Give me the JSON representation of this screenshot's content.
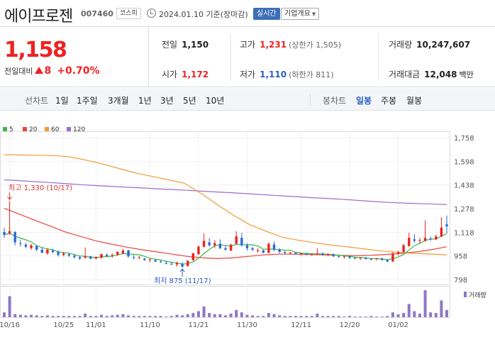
{
  "header": {
    "stock_name": "에이프로젠",
    "stock_code": "007460",
    "market": "코스피",
    "datetime": "2024.01.10 기준(장마감)",
    "realtime_label": "실시간",
    "company_button": "기업개요"
  },
  "quote": {
    "price": "1,158",
    "change_label": "전일대비",
    "change": "8",
    "change_pct": "+0.70%",
    "prev_close_label": "전일",
    "prev_close": "1,150",
    "open_label": "시가",
    "open": "1,172",
    "high_label": "고가",
    "high": "1,231",
    "upper_limit": "(상한가 1,505)",
    "low_label": "저가",
    "low": "1,110",
    "lower_limit": "(하한가 811)",
    "volume_label": "거래량",
    "volume": "10,247,607",
    "amount_label": "거래대금",
    "amount": "12,048",
    "amount_unit": "백만"
  },
  "period_tabs": {
    "line_title": "선차트",
    "line_items": [
      "1일",
      "1주일",
      "3개월",
      "1년",
      "3년",
      "5년",
      "10년"
    ],
    "candle_title": "봉차트",
    "candle_items": [
      "일봉",
      "주봉",
      "월봉"
    ],
    "active_candle": "일봉"
  },
  "chart_data": {
    "type": "candlestick",
    "y_ticks": [
      "1,758",
      "1,598",
      "1,438",
      "1,278",
      "1,118",
      "958",
      "798"
    ],
    "ylim": [
      798,
      1758
    ],
    "x_ticks": [
      "10/16",
      "10/25",
      "11/01",
      "11/10",
      "11/21",
      "11/30",
      "12/11",
      "12/20",
      "01/02"
    ],
    "moving_averages": [
      {
        "name": "5",
        "color": "#3cb84a"
      },
      {
        "name": "20",
        "color": "#e8453c"
      },
      {
        "name": "60",
        "color": "#f39a32"
      },
      {
        "name": "120",
        "color": "#9a6cd1"
      }
    ],
    "ma60": [
      1643,
      1641,
      1639,
      1637,
      1628,
      1606,
      1580,
      1549,
      1520,
      1496,
      1474,
      1449,
      1381,
      1305,
      1232,
      1168,
      1124,
      1083,
      1063,
      1046,
      1031,
      1019,
      1005,
      991,
      984,
      975,
      971,
      966
    ],
    "ma120": [
      1473,
      1465,
      1457,
      1449,
      1440,
      1432,
      1425,
      1419,
      1412,
      1405,
      1398,
      1391,
      1384,
      1376,
      1368,
      1360,
      1352,
      1345,
      1337,
      1328,
      1320,
      1314,
      1310,
      1305
    ],
    "ma20": [
      1280,
      1240,
      1200,
      1160,
      1120,
      1090,
      1060,
      1038,
      1018,
      1000,
      985,
      970,
      955,
      945,
      940,
      945,
      955,
      965,
      970,
      970,
      968,
      965,
      962,
      960,
      962,
      968,
      975,
      985,
      1000,
      1020
    ],
    "max_annotation": "최고 1,330 (10/17)",
    "min_annotation": "최저 875 (11/17)",
    "volume_legend": "거래량",
    "candles": [
      {
        "o": 1120,
        "h": 1150,
        "l": 1080,
        "c": 1100
      },
      {
        "o": 1110,
        "h": 1330,
        "l": 1100,
        "c": 1125
      },
      {
        "o": 1120,
        "h": 1125,
        "l": 1030,
        "c": 1050
      },
      {
        "o": 1045,
        "h": 1070,
        "l": 1020,
        "c": 1040
      },
      {
        "o": 1035,
        "h": 1045,
        "l": 1010,
        "c": 1020
      },
      {
        "o": 1010,
        "h": 1040,
        "l": 1000,
        "c": 1030
      },
      {
        "o": 1025,
        "h": 1030,
        "l": 990,
        "c": 1000
      },
      {
        "o": 1000,
        "h": 1015,
        "l": 975,
        "c": 980
      },
      {
        "o": 975,
        "h": 1010,
        "l": 965,
        "c": 1000
      },
      {
        "o": 995,
        "h": 1005,
        "l": 975,
        "c": 985
      },
      {
        "o": 985,
        "h": 995,
        "l": 955,
        "c": 965
      },
      {
        "o": 965,
        "h": 985,
        "l": 955,
        "c": 975
      },
      {
        "o": 970,
        "h": 975,
        "l": 950,
        "c": 960
      },
      {
        "o": 960,
        "h": 970,
        "l": 940,
        "c": 950
      },
      {
        "o": 950,
        "h": 960,
        "l": 930,
        "c": 940
      },
      {
        "o": 945,
        "h": 1015,
        "l": 940,
        "c": 955
      },
      {
        "o": 955,
        "h": 958,
        "l": 935,
        "c": 940
      },
      {
        "o": 940,
        "h": 955,
        "l": 935,
        "c": 950
      },
      {
        "o": 945,
        "h": 975,
        "l": 940,
        "c": 970
      },
      {
        "o": 965,
        "h": 975,
        "l": 950,
        "c": 955
      },
      {
        "o": 960,
        "h": 975,
        "l": 945,
        "c": 965
      },
      {
        "o": 965,
        "h": 990,
        "l": 960,
        "c": 985
      },
      {
        "o": 975,
        "h": 1005,
        "l": 970,
        "c": 995
      },
      {
        "o": 995,
        "h": 1000,
        "l": 945,
        "c": 955
      },
      {
        "o": 950,
        "h": 965,
        "l": 935,
        "c": 945
      },
      {
        "o": 945,
        "h": 955,
        "l": 935,
        "c": 950
      },
      {
        "o": 940,
        "h": 945,
        "l": 925,
        "c": 930
      },
      {
        "o": 930,
        "h": 940,
        "l": 915,
        "c": 935
      },
      {
        "o": 930,
        "h": 935,
        "l": 915,
        "c": 920
      },
      {
        "o": 920,
        "h": 930,
        "l": 910,
        "c": 915
      },
      {
        "o": 910,
        "h": 925,
        "l": 900,
        "c": 905
      },
      {
        "o": 905,
        "h": 915,
        "l": 895,
        "c": 900
      },
      {
        "o": 900,
        "h": 920,
        "l": 885,
        "c": 910
      },
      {
        "o": 905,
        "h": 915,
        "l": 880,
        "c": 885
      },
      {
        "o": 890,
        "h": 930,
        "l": 885,
        "c": 925
      },
      {
        "o": 930,
        "h": 980,
        "l": 925,
        "c": 975
      },
      {
        "o": 970,
        "h": 1030,
        "l": 965,
        "c": 1020
      },
      {
        "o": 1020,
        "h": 1110,
        "l": 1015,
        "c": 1060
      },
      {
        "o": 1050,
        "h": 1080,
        "l": 1020,
        "c": 1030
      },
      {
        "o": 1030,
        "h": 1065,
        "l": 1010,
        "c": 1045
      },
      {
        "o": 1040,
        "h": 1070,
        "l": 1005,
        "c": 1010
      },
      {
        "o": 1010,
        "h": 1025,
        "l": 995,
        "c": 1000
      },
      {
        "o": 995,
        "h": 1040,
        "l": 990,
        "c": 1035
      },
      {
        "o": 1040,
        "h": 1125,
        "l": 1035,
        "c": 1090
      },
      {
        "o": 1080,
        "h": 1115,
        "l": 1020,
        "c": 1030
      },
      {
        "o": 1030,
        "h": 1045,
        "l": 995,
        "c": 1010
      },
      {
        "o": 1010,
        "h": 1020,
        "l": 990,
        "c": 1000
      },
      {
        "o": 990,
        "h": 1010,
        "l": 980,
        "c": 995
      },
      {
        "o": 995,
        "h": 1000,
        "l": 975,
        "c": 980
      },
      {
        "o": 980,
        "h": 1050,
        "l": 975,
        "c": 1040
      },
      {
        "o": 1035,
        "h": 1055,
        "l": 990,
        "c": 1000
      },
      {
        "o": 1000,
        "h": 1010,
        "l": 975,
        "c": 985
      },
      {
        "o": 985,
        "h": 990,
        "l": 970,
        "c": 978
      },
      {
        "o": 975,
        "h": 985,
        "l": 968,
        "c": 980
      },
      {
        "o": 978,
        "h": 985,
        "l": 965,
        "c": 970
      },
      {
        "o": 970,
        "h": 980,
        "l": 960,
        "c": 975
      },
      {
        "o": 975,
        "h": 980,
        "l": 962,
        "c": 968
      },
      {
        "o": 968,
        "h": 975,
        "l": 958,
        "c": 970
      },
      {
        "o": 970,
        "h": 1010,
        "l": 965,
        "c": 975
      },
      {
        "o": 975,
        "h": 982,
        "l": 960,
        "c": 965
      },
      {
        "o": 965,
        "h": 975,
        "l": 955,
        "c": 970
      },
      {
        "o": 968,
        "h": 975,
        "l": 950,
        "c": 955
      },
      {
        "o": 955,
        "h": 962,
        "l": 945,
        "c": 950
      },
      {
        "o": 950,
        "h": 958,
        "l": 940,
        "c": 955
      },
      {
        "o": 955,
        "h": 960,
        "l": 938,
        "c": 945
      },
      {
        "o": 945,
        "h": 950,
        "l": 935,
        "c": 940
      },
      {
        "o": 940,
        "h": 948,
        "l": 930,
        "c": 945
      },
      {
        "o": 945,
        "h": 950,
        "l": 932,
        "c": 938
      },
      {
        "o": 938,
        "h": 945,
        "l": 928,
        "c": 935
      },
      {
        "o": 935,
        "h": 945,
        "l": 928,
        "c": 940
      },
      {
        "o": 940,
        "h": 945,
        "l": 925,
        "c": 930
      },
      {
        "o": 930,
        "h": 935,
        "l": 915,
        "c": 920
      },
      {
        "o": 920,
        "h": 985,
        "l": 918,
        "c": 975
      },
      {
        "o": 975,
        "h": 990,
        "l": 960,
        "c": 985
      },
      {
        "o": 985,
        "h": 1040,
        "l": 980,
        "c": 1030
      },
      {
        "o": 1025,
        "h": 1115,
        "l": 1020,
        "c": 1080
      },
      {
        "o": 1070,
        "h": 1105,
        "l": 1045,
        "c": 1060
      },
      {
        "o": 1060,
        "h": 1080,
        "l": 1040,
        "c": 1065
      },
      {
        "o": 1060,
        "h": 1200,
        "l": 1055,
        "c": 1080
      },
      {
        "o": 1075,
        "h": 1090,
        "l": 1060,
        "c": 1070
      },
      {
        "o": 1070,
        "h": 1100,
        "l": 1065,
        "c": 1090
      },
      {
        "o": 1090,
        "h": 1220,
        "l": 1085,
        "c": 1150
      },
      {
        "o": 1172,
        "h": 1231,
        "l": 1110,
        "c": 1158
      }
    ],
    "volume": [
      8,
      35,
      5,
      4,
      3,
      4,
      3,
      2,
      3,
      2,
      2,
      2,
      2,
      2,
      2,
      6,
      2,
      2,
      4,
      2,
      3,
      4,
      5,
      3,
      2,
      2,
      2,
      2,
      2,
      2,
      1,
      2,
      4,
      3,
      5,
      7,
      10,
      18,
      7,
      5,
      5,
      3,
      6,
      12,
      8,
      4,
      3,
      2,
      2,
      7,
      5,
      3,
      2,
      2,
      2,
      2,
      2,
      2,
      6,
      2,
      2,
      2,
      2,
      1,
      2,
      1,
      1,
      1,
      2,
      1,
      1,
      2,
      8,
      5,
      7,
      22,
      10,
      6,
      45,
      8,
      7,
      28,
      12
    ]
  }
}
